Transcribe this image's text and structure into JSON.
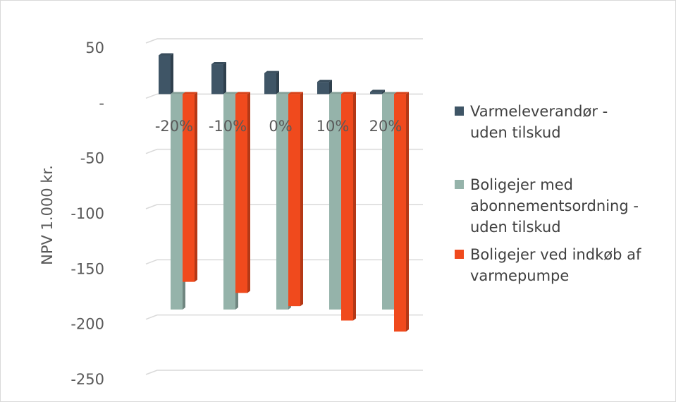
{
  "chart_data": {
    "type": "bar",
    "categories": [
      "-20%",
      "-10%",
      "0%",
      "10%",
      "20%"
    ],
    "series": [
      {
        "name": "Varmeleverandør - uden tilskud",
        "values": [
          35,
          27,
          19,
          11,
          2
        ],
        "color": "#3f5566"
      },
      {
        "name": "Boligejer med abonnementsordning - uden tilskud",
        "values": [
          -195,
          -195,
          -195,
          -195,
          -195
        ],
        "color": "#95b3aa"
      },
      {
        "name": "Boligejer ved indkøb af varmepumpe",
        "values": [
          -170,
          -180,
          -192,
          -205,
          -215
        ],
        "color": "#f04a1d"
      }
    ],
    "legend_lines": [
      [
        "Varmeleverandør -",
        "uden tilskud"
      ],
      [
        "Boligejer med",
        "abonnementsordning -",
        "uden tilskud"
      ],
      [
        "Boligejer ved indkøb af",
        "varmepumpe"
      ]
    ],
    "ylabel": "NPV 1.000 kr.",
    "ylim": [
      -250,
      50
    ],
    "yticks": [
      50,
      0,
      -50,
      -100,
      -150,
      -200,
      -250
    ],
    "ytick_labels": [
      "50",
      "-",
      "-50",
      "-100",
      "-150",
      "-200",
      "-250"
    ],
    "grid": true,
    "legend_position": "right"
  }
}
